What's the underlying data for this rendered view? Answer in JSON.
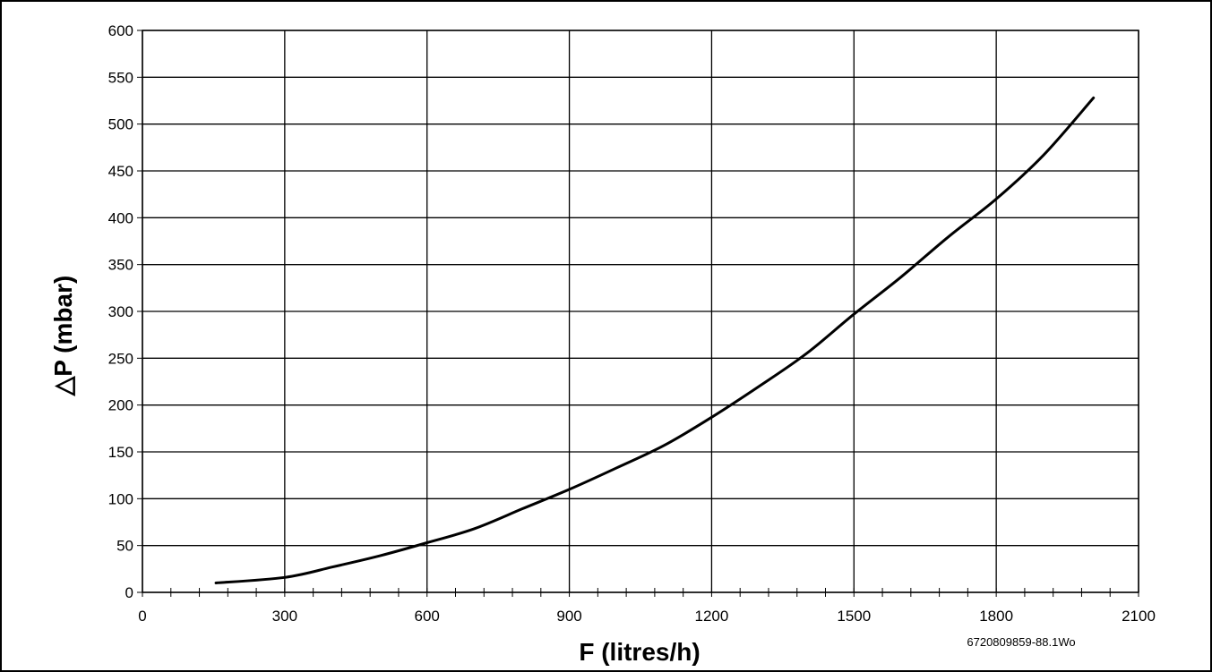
{
  "chart_data": {
    "type": "line",
    "xlabel": "F (litres/h)",
    "ylabel": "△P  (mbar)",
    "xlim": [
      0,
      2100
    ],
    "ylim": [
      0,
      600
    ],
    "x_ticks": [
      0,
      300,
      600,
      900,
      1200,
      1500,
      1800,
      2100
    ],
    "y_ticks": [
      0,
      50,
      100,
      150,
      200,
      250,
      300,
      350,
      400,
      450,
      500,
      550,
      600
    ],
    "x_tick_labels": [
      "0",
      "300",
      "600",
      "900",
      "1200",
      "1500",
      "1800",
      "2100"
    ],
    "y_tick_labels": [
      "0",
      "50",
      "100",
      "150",
      "200",
      "250",
      "300",
      "350",
      "400",
      "450",
      "500",
      "550",
      "600"
    ],
    "x_minor_step": 60,
    "grid": true,
    "line_color": "#000000",
    "series": [
      {
        "x": [
          155,
          300,
          400,
          500,
          600,
          700,
          800,
          900,
          1000,
          1100,
          1200,
          1300,
          1400,
          1500,
          1600,
          1700,
          1800,
          1900,
          2005
        ],
        "y": [
          10,
          16,
          27,
          39,
          53,
          68,
          89,
          110,
          133,
          157,
          187,
          220,
          255,
          297,
          337,
          380,
          420,
          467,
          528
        ]
      }
    ],
    "reference_code": "6720809859-88.1Wo"
  }
}
